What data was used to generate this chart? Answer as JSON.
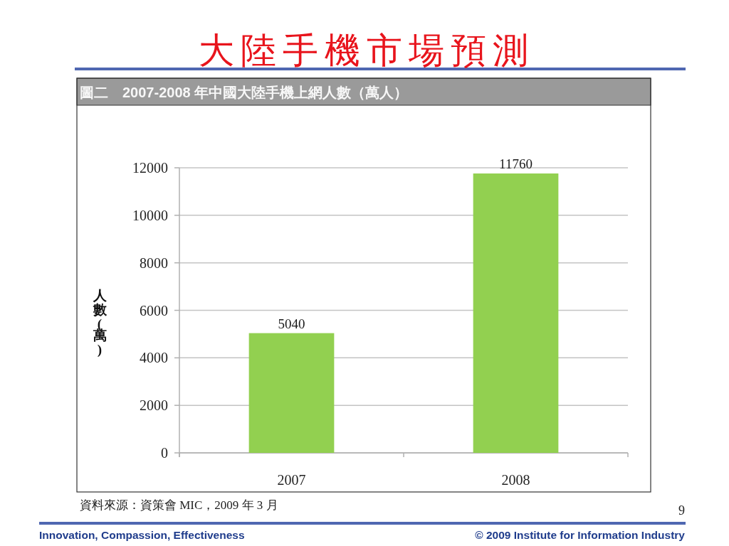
{
  "chart_data": {
    "type": "bar",
    "title": "大陸手機市場預測",
    "subtitle": "圖二　2007-2008 年中國大陸手機上網人數（萬人）",
    "ylabel": "人數(萬)",
    "categories": [
      "2007",
      "2008"
    ],
    "values": [
      5040,
      11760
    ],
    "color": "#92d050",
    "data_labels": true,
    "ylim": [
      0,
      12000
    ],
    "yticks": [
      0,
      2000,
      4000,
      6000,
      8000,
      10000,
      12000
    ],
    "grid": "y",
    "annotations": [
      "資料來源：資策會 MIC，2009 年 3 月",
      "9",
      "Innovation, Compassion, Effectiveness",
      "© 2009 Institute for Information Industry"
    ]
  }
}
